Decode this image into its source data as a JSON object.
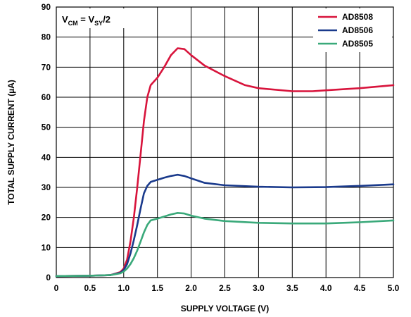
{
  "chart_data": {
    "type": "line",
    "title": "",
    "xlabel": "SUPPLY VOLTAGE (V)",
    "ylabel": "TOTAL SUPPLY CURRENT (µA)",
    "xlim": [
      0,
      5.0
    ],
    "ylim": [
      0,
      90
    ],
    "x_ticks": [
      "0",
      "0.5",
      "1.0",
      "1.5",
      "2.0",
      "2.5",
      "3.0",
      "3.5",
      "4.0",
      "4.5",
      "5.0"
    ],
    "y_ticks": [
      "0",
      "10",
      "20",
      "30",
      "40",
      "50",
      "60",
      "70",
      "80",
      "90"
    ],
    "grid": true,
    "legend_position": "top-right",
    "annotation": {
      "prefix": "V",
      "prefix_sub": "CM",
      "mid": " = V",
      "mid_sub": "SY",
      "suffix": "/2"
    },
    "series": [
      {
        "name": "AD8508",
        "color": "#d8143c",
        "points": [
          [
            0,
            0.5
          ],
          [
            0.5,
            0.6
          ],
          [
            0.8,
            0.8
          ],
          [
            0.95,
            1.8
          ],
          [
            1.0,
            3
          ],
          [
            1.05,
            6
          ],
          [
            1.1,
            12
          ],
          [
            1.15,
            20
          ],
          [
            1.2,
            30
          ],
          [
            1.25,
            41
          ],
          [
            1.3,
            52
          ],
          [
            1.35,
            60
          ],
          [
            1.4,
            64
          ],
          [
            1.5,
            66.5
          ],
          [
            1.6,
            70
          ],
          [
            1.7,
            74
          ],
          [
            1.8,
            76.3
          ],
          [
            1.9,
            76
          ],
          [
            2.0,
            74
          ],
          [
            2.2,
            70.5
          ],
          [
            2.5,
            67
          ],
          [
            2.8,
            64
          ],
          [
            3.0,
            63
          ],
          [
            3.5,
            62
          ],
          [
            3.8,
            62
          ],
          [
            4.0,
            62.3
          ],
          [
            4.5,
            63
          ],
          [
            5.0,
            64
          ]
        ]
      },
      {
        "name": "AD8506",
        "color": "#1a3a8c",
        "points": [
          [
            0,
            0.5
          ],
          [
            0.5,
            0.6
          ],
          [
            0.8,
            0.8
          ],
          [
            0.95,
            1.6
          ],
          [
            1.0,
            2.5
          ],
          [
            1.05,
            4.5
          ],
          [
            1.1,
            8
          ],
          [
            1.15,
            12.5
          ],
          [
            1.2,
            17.5
          ],
          [
            1.25,
            23
          ],
          [
            1.3,
            28
          ],
          [
            1.35,
            30.5
          ],
          [
            1.4,
            31.8
          ],
          [
            1.5,
            32.5
          ],
          [
            1.6,
            33.2
          ],
          [
            1.7,
            33.8
          ],
          [
            1.8,
            34.2
          ],
          [
            1.9,
            33.8
          ],
          [
            2.0,
            33
          ],
          [
            2.2,
            31.5
          ],
          [
            2.5,
            30.7
          ],
          [
            3.0,
            30.2
          ],
          [
            3.5,
            30
          ],
          [
            4.0,
            30.1
          ],
          [
            4.5,
            30.5
          ],
          [
            5.0,
            31
          ]
        ]
      },
      {
        "name": "AD8505",
        "color": "#3aa97a",
        "points": [
          [
            0,
            0.5
          ],
          [
            0.5,
            0.6
          ],
          [
            0.8,
            0.8
          ],
          [
            0.95,
            1.4
          ],
          [
            1.0,
            2
          ],
          [
            1.05,
            3
          ],
          [
            1.1,
            4.5
          ],
          [
            1.15,
            6.5
          ],
          [
            1.2,
            9
          ],
          [
            1.25,
            12
          ],
          [
            1.3,
            15
          ],
          [
            1.35,
            17.5
          ],
          [
            1.4,
            19
          ],
          [
            1.5,
            19.6
          ],
          [
            1.6,
            20.3
          ],
          [
            1.7,
            21
          ],
          [
            1.8,
            21.5
          ],
          [
            1.9,
            21.3
          ],
          [
            2.0,
            20.6
          ],
          [
            2.2,
            19.6
          ],
          [
            2.5,
            18.8
          ],
          [
            3.0,
            18.2
          ],
          [
            3.5,
            18
          ],
          [
            4.0,
            18
          ],
          [
            4.5,
            18.4
          ],
          [
            5.0,
            19
          ]
        ]
      }
    ]
  }
}
